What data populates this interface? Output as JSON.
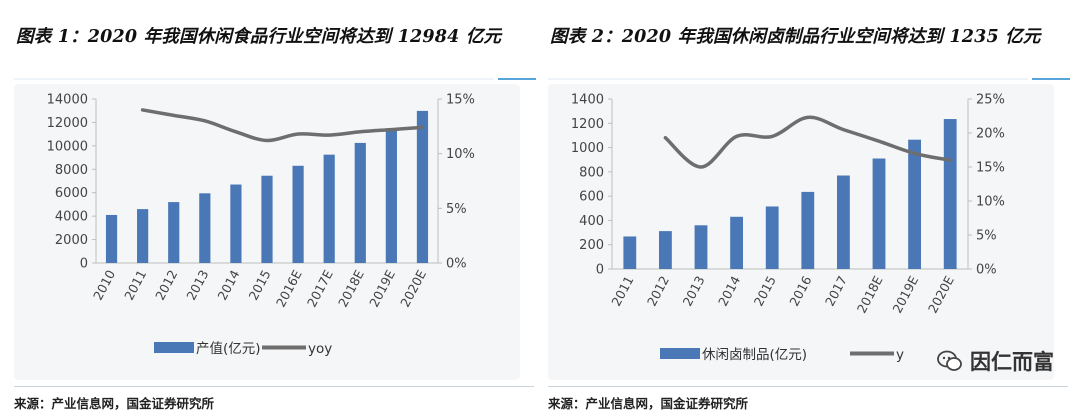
{
  "colors": {
    "bar": "#4a78b7",
    "line": "#6e6e6e",
    "accent": "#58a6d9"
  },
  "panel1": {
    "title": "图表 1：2020 年我国休闲食品行业空间将达到 12984 亿元",
    "source": "来源：产业信息网，国金证券研究所"
  },
  "panel2": {
    "title": "图表 2：2020 年我国休闲卤制品行业空间将达到 1235 亿元",
    "source": "来源：产业信息网，国金证券研究所"
  },
  "watermark": {
    "text": "因仁而富"
  },
  "chart_data": [
    {
      "type": "bar",
      "title": "2020 年我国休闲食品行业空间将达到 12984 亿元",
      "categories": [
        "2010",
        "2011",
        "2012",
        "2013",
        "2014",
        "2015",
        "2016E",
        "2017E",
        "2018E",
        "2019E",
        "2020E"
      ],
      "series": [
        {
          "name": "产值(亿元)",
          "type": "bar",
          "axis": "left",
          "values": [
            4100,
            4600,
            5200,
            5950,
            6700,
            7450,
            8300,
            9250,
            10250,
            11500,
            12984
          ]
        },
        {
          "name": "yoy",
          "type": "line",
          "axis": "right",
          "values": [
            null,
            14.0,
            13.5,
            13.0,
            12.0,
            11.2,
            11.8,
            11.7,
            12.0,
            12.2,
            12.4
          ]
        }
      ],
      "ylim_left": [
        0,
        14000
      ],
      "yticks_left": [
        "0",
        "2000",
        "4000",
        "6000",
        "8000",
        "10000",
        "12000",
        "14000"
      ],
      "ylim_right": [
        0,
        15
      ],
      "yticks_right": [
        "0%",
        "5%",
        "10%",
        "15%"
      ],
      "legend": [
        {
          "label": "产值(亿元)",
          "kind": "bar"
        },
        {
          "label": "yoy",
          "kind": "line"
        }
      ],
      "legend_position": "bottom"
    },
    {
      "type": "bar",
      "title": "2020 年我国休闲卤制品行业空间将达到 1235 亿元",
      "categories": [
        "2011",
        "2012",
        "2013",
        "2014",
        "2015",
        "2016",
        "2017",
        "2018E",
        "2019E",
        "2020E"
      ],
      "series": [
        {
          "name": "休闲卤制品(亿元)",
          "type": "bar",
          "axis": "left",
          "values": [
            268,
            312,
            360,
            430,
            515,
            635,
            770,
            910,
            1065,
            1235
          ]
        },
        {
          "name": "yoy",
          "type": "line",
          "axis": "right",
          "values": [
            null,
            19.3,
            15.0,
            19.5,
            19.5,
            22.3,
            20.5,
            18.8,
            17.0,
            16.0
          ]
        }
      ],
      "ylim_left": [
        0,
        1400
      ],
      "yticks_left": [
        "0",
        "200",
        "400",
        "600",
        "800",
        "1000",
        "1200",
        "1400"
      ],
      "ylim_right": [
        0,
        25
      ],
      "yticks_right": [
        "0%",
        "5%",
        "10%",
        "15%",
        "20%",
        "25%"
      ],
      "legend": [
        {
          "label": "休闲卤制品(亿元)",
          "kind": "bar"
        },
        {
          "label": "yoy",
          "kind": "line",
          "visible_text": "y"
        }
      ],
      "legend_position": "bottom"
    }
  ]
}
